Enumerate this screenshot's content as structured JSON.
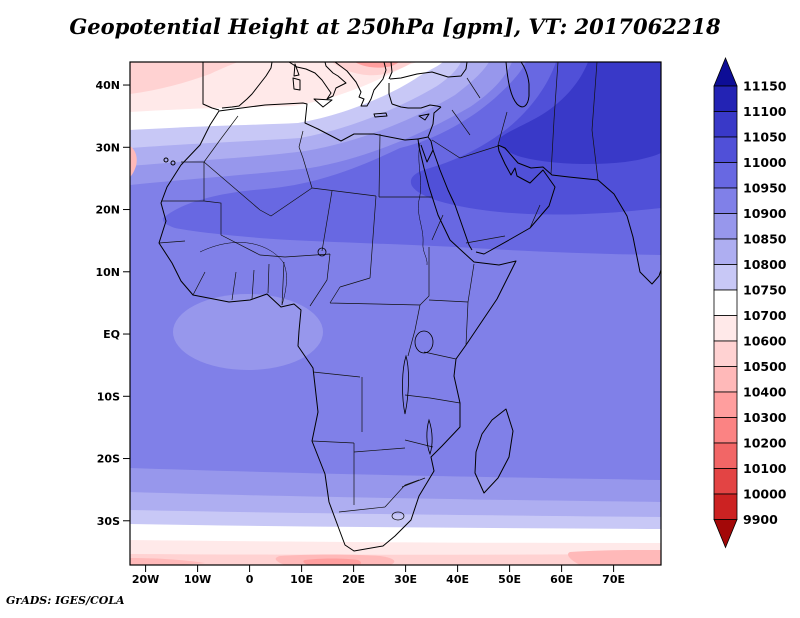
{
  "header": {
    "title": "Geopotential Height at 250hPa [gpm], VT: 2017062218"
  },
  "footer": {
    "credit": "GrADS: IGES/COLA"
  },
  "chart_data": {
    "type": "heatmap",
    "title": "Geopotential Height at 250hPa [gpm], VT: 2017062218",
    "variable": "Geopotential Height",
    "level": "250hPa",
    "units": "gpm",
    "valid_time": "2017062218",
    "region": "Africa, Middle East and surrounding oceans",
    "lon_range_deg": [
      -23,
      79
    ],
    "lat_range_deg": [
      -37.5,
      43.7
    ],
    "x_ticks": [
      {
        "label": "20W",
        "lon": -20
      },
      {
        "label": "10W",
        "lon": -10
      },
      {
        "label": "0",
        "lon": 0
      },
      {
        "label": "10E",
        "lon": 10
      },
      {
        "label": "20E",
        "lon": 20
      },
      {
        "label": "30E",
        "lon": 30
      },
      {
        "label": "40E",
        "lon": 40
      },
      {
        "label": "50E",
        "lon": 50
      },
      {
        "label": "60E",
        "lon": 60
      },
      {
        "label": "70E",
        "lon": 70
      }
    ],
    "y_ticks": [
      {
        "label": "40N",
        "lat": 40
      },
      {
        "label": "30N",
        "lat": 30
      },
      {
        "label": "20N",
        "lat": 20
      },
      {
        "label": "10N",
        "lat": 10
      },
      {
        "label": "EQ",
        "lat": 0
      },
      {
        "label": "10S",
        "lat": -10
      },
      {
        "label": "20S",
        "lat": -20
      },
      {
        "label": "30S",
        "lat": -30
      }
    ],
    "colorbar": {
      "orientation": "vertical",
      "position": "right",
      "levels": [
        11150,
        11100,
        11050,
        11000,
        10950,
        10900,
        10850,
        10800,
        10750,
        10700,
        10600,
        10500,
        10400,
        10300,
        10200,
        10100,
        10000,
        9900
      ],
      "colors": [
        "#0d0d96",
        "#2323b4",
        "#3939c8",
        "#5050d8",
        "#6868e2",
        "#8080e8",
        "#9797ec",
        "#aeaef1",
        "#c8c8f6",
        "#ffffff",
        "#ffe9e9",
        "#ffd2d2",
        "#ffb9b9",
        "#ff9e9e",
        "#fb8383",
        "#f26666",
        "#e34444",
        "#cc2222",
        "#a30808"
      ]
    },
    "field_pattern": {
      "maximum": {
        "value_range_gpm": "11050-11100",
        "location": "north-east of map over Middle East / south-west Asia"
      },
      "subtropical_high_band": {
        "value_range_gpm": "10950-11050",
        "location": "Sahara, Egypt, Arabia (15N-32N)"
      },
      "interior": {
        "value_range_gpm": "10900-10950",
        "location": "equatorial and southern Africa"
      },
      "minimum_north": {
        "value_range_gpm": "10300-10600",
        "location": "northern edge over Turkey and north-west corner"
      },
      "minimum_south": {
        "value_range_gpm": "10200-10600",
        "location": "southern edge south of 35S"
      }
    }
  }
}
